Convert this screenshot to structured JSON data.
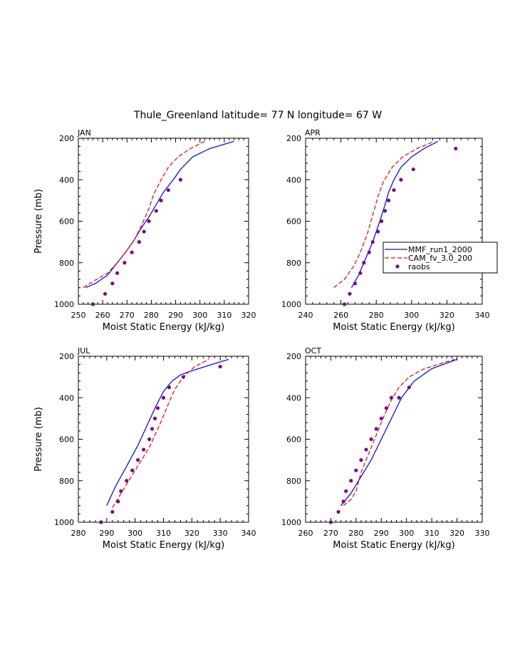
{
  "figure_title": "Thule_Greenland  latitude= 77 N longitude= 67 W",
  "legend": {
    "entries": [
      {
        "label": "MMF_run1_2000",
        "color": "#1010dd",
        "style": "solid"
      },
      {
        "label": "CAM_fv_3.0_200",
        "color": "#e01515",
        "style": "dashed"
      },
      {
        "label": "raobs",
        "color": "#7a0a8a",
        "style": "marker"
      }
    ]
  },
  "chart_data": [
    {
      "type": "line",
      "panel": "JAN",
      "title": "JAN",
      "xlabel": "Moist Static Energy (kJ/kg)",
      "ylabel": "Pressure (mb)",
      "xlim": [
        250,
        320
      ],
      "xticks": [
        250,
        260,
        270,
        280,
        290,
        300,
        310,
        320
      ],
      "ylim": [
        1000,
        200
      ],
      "yticks": [
        200,
        400,
        600,
        800,
        1000
      ],
      "show_ylabel": true,
      "series": [
        {
          "name": "MMF_run1_2000",
          "x": [
            253,
            257,
            262,
            266,
            270,
            273,
            276,
            279,
            282,
            285,
            289,
            292,
            297,
            304,
            314
          ],
          "y": [
            920,
            900,
            860,
            800,
            740,
            690,
            630,
            580,
            520,
            460,
            400,
            350,
            290,
            250,
            215
          ]
        },
        {
          "name": "CAM_fv_3.0_200",
          "x": [
            252,
            256,
            262,
            266,
            270,
            273,
            276,
            279,
            281,
            284,
            287,
            291,
            296,
            302
          ],
          "y": [
            920,
            890,
            850,
            800,
            740,
            690,
            620,
            540,
            470,
            400,
            340,
            290,
            250,
            215
          ]
        },
        {
          "name": "raobs",
          "x": [
            256,
            261,
            264,
            266,
            269,
            272,
            275,
            277,
            279,
            282,
            284,
            287,
            292
          ],
          "y": [
            1000,
            950,
            900,
            850,
            800,
            750,
            700,
            650,
            600,
            550,
            500,
            450,
            400
          ]
        }
      ]
    },
    {
      "type": "line",
      "panel": "APR",
      "title": "APR",
      "xlabel": "Moist Static Energy (kJ/kg)",
      "ylabel": "",
      "xlim": [
        240,
        340
      ],
      "xticks": [
        240,
        260,
        280,
        300,
        320,
        340
      ],
      "ylim": [
        1000,
        200
      ],
      "yticks": [
        200,
        400,
        600,
        800,
        1000
      ],
      "show_ylabel": false,
      "series": [
        {
          "name": "MMF_run1_2000",
          "x": [
            266,
            270,
            274,
            278,
            282,
            285,
            287,
            290,
            294,
            300,
            307,
            315
          ],
          "y": [
            920,
            860,
            780,
            700,
            600,
            520,
            460,
            400,
            340,
            290,
            250,
            215
          ]
        },
        {
          "name": "CAM_fv_3.0_200",
          "x": [
            256,
            262,
            267,
            271,
            275,
            278,
            281,
            284,
            289,
            295,
            303,
            313
          ],
          "y": [
            920,
            880,
            820,
            750,
            660,
            570,
            480,
            410,
            340,
            290,
            250,
            215
          ]
        },
        {
          "name": "raobs",
          "x": [
            262,
            265,
            268,
            271,
            273,
            276,
            278,
            281,
            283,
            285,
            287,
            290,
            294,
            301,
            325
          ],
          "y": [
            1000,
            950,
            900,
            850,
            800,
            750,
            700,
            650,
            600,
            550,
            500,
            450,
            400,
            350,
            250
          ]
        }
      ]
    },
    {
      "type": "line",
      "panel": "JUL",
      "title": "JUL",
      "xlabel": "Moist Static Energy (kJ/kg)",
      "ylabel": "Pressure (mb)",
      "xlim": [
        280,
        340
      ],
      "xticks": [
        280,
        290,
        300,
        310,
        320,
        330,
        340
      ],
      "ylim": [
        1000,
        200
      ],
      "yticks": [
        200,
        400,
        600,
        800,
        1000
      ],
      "show_ylabel": true,
      "series": [
        {
          "name": "MMF_run1_2000",
          "x": [
            290,
            293,
            297,
            301,
            304,
            307,
            310,
            313,
            316,
            320,
            327,
            333
          ],
          "y": [
            920,
            830,
            730,
            630,
            540,
            450,
            370,
            320,
            290,
            270,
            240,
            215
          ]
        },
        {
          "name": "CAM_fv_3.0_200",
          "x": [
            292,
            296,
            300,
            305,
            309,
            312,
            314,
            317,
            321,
            326
          ],
          "y": [
            930,
            840,
            750,
            640,
            520,
            420,
            360,
            300,
            250,
            215
          ]
        },
        {
          "name": "raobs",
          "x": [
            288,
            292,
            294,
            295,
            297,
            299,
            301,
            303,
            305,
            306,
            307,
            308,
            310,
            312,
            317,
            330
          ],
          "y": [
            1000,
            950,
            900,
            850,
            800,
            750,
            700,
            650,
            600,
            550,
            500,
            450,
            400,
            350,
            300,
            250
          ]
        }
      ]
    },
    {
      "type": "line",
      "panel": "OCT",
      "title": "OCT",
      "xlabel": "Moist Static Energy (kJ/kg)",
      "ylabel": "",
      "xlim": [
        260,
        330
      ],
      "xticks": [
        260,
        270,
        280,
        290,
        300,
        310,
        320,
        330
      ],
      "ylim": [
        1000,
        200
      ],
      "yticks": [
        200,
        400,
        600,
        800,
        1000
      ],
      "show_ylabel": false,
      "series": [
        {
          "name": "MMF_run1_2000",
          "x": [
            274,
            278,
            282,
            286,
            290,
            294,
            298,
            303,
            310,
            320
          ],
          "y": [
            920,
            860,
            780,
            700,
            600,
            500,
            400,
            320,
            260,
            215
          ]
        },
        {
          "name": "CAM_fv_3.0_200",
          "x": [
            275,
            278,
            280,
            282,
            285,
            288,
            291,
            294,
            297,
            301,
            307,
            319
          ],
          "y": [
            920,
            890,
            850,
            760,
            670,
            580,
            490,
            410,
            350,
            300,
            260,
            215
          ]
        },
        {
          "name": "raobs",
          "x": [
            270,
            273,
            275,
            276,
            278,
            280,
            282,
            284,
            286,
            288,
            290,
            292,
            294,
            297,
            301
          ],
          "y": [
            1000,
            950,
            900,
            850,
            800,
            750,
            700,
            650,
            600,
            550,
            500,
            450,
            400,
            400,
            350
          ]
        }
      ]
    }
  ]
}
